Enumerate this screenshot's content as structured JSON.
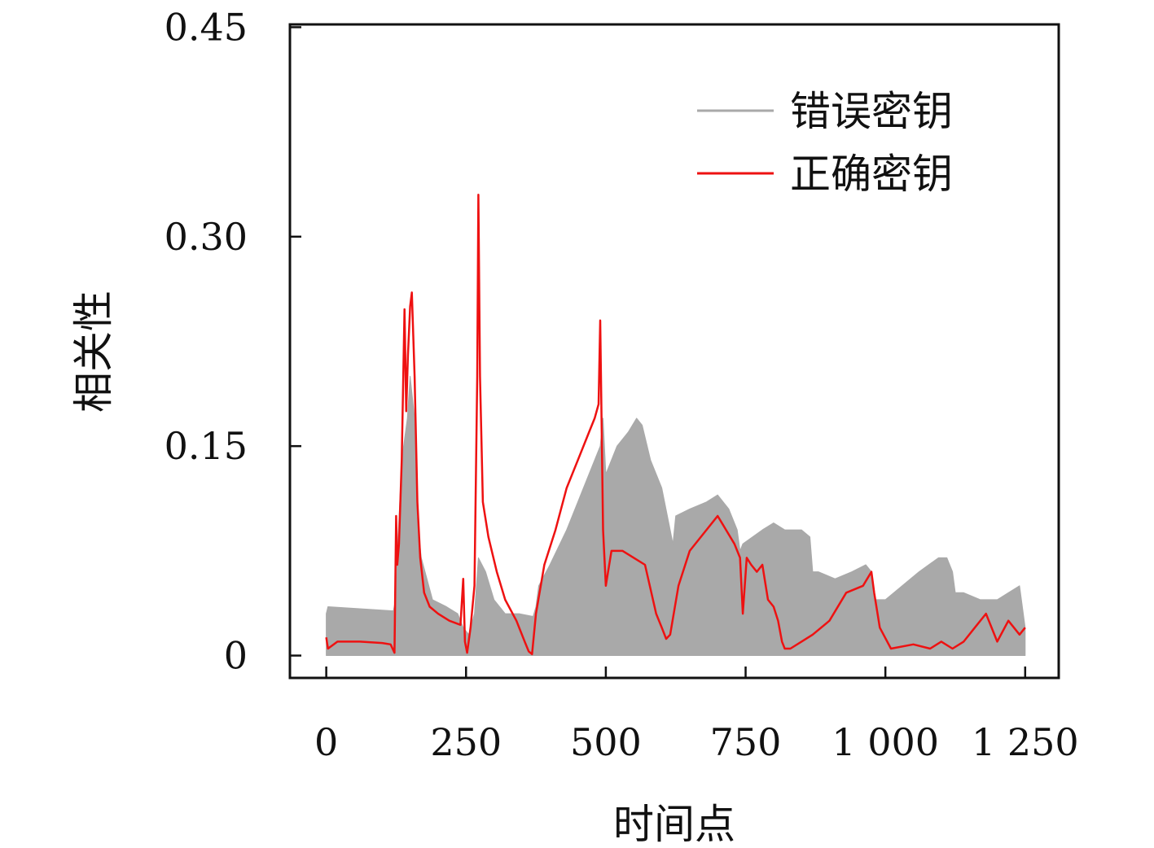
{
  "chart_data": {
    "type": "line",
    "title": "",
    "xlabel": "时间点",
    "ylabel": "相关性",
    "xlim": [
      -65,
      1310
    ],
    "ylim": [
      -0.016,
      0.452
    ],
    "x_ticks": [
      0,
      250,
      500,
      750,
      1000,
      1250
    ],
    "x_tick_labels": [
      "0",
      "250",
      "500",
      "750",
      "1 000",
      "1 250"
    ],
    "y_ticks": [
      0,
      0.15,
      0.3,
      0.45
    ],
    "y_tick_labels": [
      "0",
      "0.15",
      "0.30",
      "0.45"
    ],
    "grid": false,
    "legend_position": "top-right",
    "legend": [
      {
        "label": "错误密钥",
        "color": "#a9a9a9"
      },
      {
        "label": "正确密钥",
        "color": "#ee1111"
      }
    ],
    "series": [
      {
        "name": "错误密钥",
        "color": "#a9a9a9",
        "kind": "envelope",
        "x": [
          0,
          3,
          120,
          124,
          128,
          135,
          145,
          150,
          158,
          162,
          170,
          190,
          215,
          235,
          245,
          255,
          265,
          272,
          285,
          300,
          320,
          345,
          370,
          375,
          380,
          400,
          430,
          460,
          490,
          495,
          500,
          520,
          540,
          555,
          565,
          580,
          600,
          615,
          620,
          625,
          650,
          680,
          700,
          720,
          735,
          740,
          745,
          780,
          800,
          820,
          850,
          865,
          870,
          880,
          910,
          940,
          965,
          975,
          980,
          1000,
          1030,
          1060,
          1095,
          1110,
          1120,
          1125,
          1140,
          1170,
          1200,
          1220,
          1240,
          1250
        ],
        "upper": [
          0.03,
          0.035,
          0.032,
          0.04,
          0.08,
          0.14,
          0.17,
          0.2,
          0.17,
          0.1,
          0.07,
          0.04,
          0.035,
          0.03,
          0.02,
          0.015,
          0.03,
          0.07,
          0.06,
          0.04,
          0.03,
          0.03,
          0.028,
          0.035,
          0.05,
          0.065,
          0.09,
          0.12,
          0.15,
          0.17,
          0.13,
          0.15,
          0.16,
          0.17,
          0.165,
          0.14,
          0.12,
          0.09,
          0.08,
          0.1,
          0.105,
          0.11,
          0.115,
          0.105,
          0.09,
          0.075,
          0.08,
          0.09,
          0.095,
          0.09,
          0.09,
          0.085,
          0.06,
          0.06,
          0.055,
          0.06,
          0.065,
          0.06,
          0.04,
          0.04,
          0.05,
          0.06,
          0.07,
          0.07,
          0.06,
          0.045,
          0.045,
          0.04,
          0.04,
          0.045,
          0.05,
          0.02
        ],
        "lower": [
          0,
          0,
          0,
          0,
          0,
          0,
          0,
          0,
          0,
          0,
          0,
          0,
          0,
          0,
          0,
          0,
          0,
          0,
          0,
          0,
          0,
          0,
          0,
          0,
          0,
          0,
          0,
          0,
          0,
          0,
          0,
          0,
          0,
          0,
          0,
          0,
          0,
          0,
          0,
          0,
          0,
          0,
          0,
          0,
          0,
          0,
          0,
          0,
          0,
          0,
          0,
          0,
          0,
          0,
          0,
          0,
          0,
          0,
          0,
          0,
          0,
          0,
          0,
          0,
          0,
          0,
          0,
          0,
          0,
          0,
          0,
          0
        ]
      },
      {
        "name": "正确密钥",
        "color": "#ee1111",
        "kind": "line",
        "x": [
          0,
          3,
          20,
          60,
          100,
          115,
          122,
          125,
          127,
          130,
          135,
          140,
          143,
          146,
          150,
          153,
          158,
          163,
          168,
          175,
          185,
          200,
          220,
          240,
          245,
          248,
          252,
          258,
          265,
          270,
          272,
          275,
          280,
          290,
          305,
          320,
          340,
          355,
          362,
          368,
          375,
          390,
          410,
          430,
          450,
          470,
          480,
          487,
          490,
          492,
          495,
          500,
          510,
          530,
          550,
          570,
          590,
          600,
          608,
          615,
          630,
          650,
          680,
          700,
          715,
          730,
          740,
          745,
          752,
          760,
          770,
          780,
          790,
          800,
          808,
          815,
          820,
          830,
          850,
          870,
          900,
          930,
          960,
          975,
          980,
          990,
          1010,
          1050,
          1080,
          1100,
          1120,
          1140,
          1160,
          1180,
          1200,
          1220,
          1240,
          1250
        ],
        "y": [
          0.013,
          0.005,
          0.01,
          0.01,
          0.009,
          0.008,
          0.002,
          0.1,
          0.065,
          0.08,
          0.14,
          0.248,
          0.175,
          0.215,
          0.25,
          0.26,
          0.2,
          0.11,
          0.07,
          0.045,
          0.035,
          0.03,
          0.025,
          0.022,
          0.055,
          0.01,
          0.002,
          0.02,
          0.05,
          0.2,
          0.33,
          0.2,
          0.11,
          0.085,
          0.06,
          0.04,
          0.025,
          0.01,
          0.003,
          0.001,
          0.03,
          0.065,
          0.09,
          0.12,
          0.14,
          0.16,
          0.17,
          0.18,
          0.24,
          0.18,
          0.09,
          0.05,
          0.075,
          0.075,
          0.07,
          0.065,
          0.03,
          0.02,
          0.012,
          0.015,
          0.05,
          0.075,
          0.09,
          0.1,
          0.09,
          0.08,
          0.07,
          0.03,
          0.07,
          0.065,
          0.06,
          0.065,
          0.04,
          0.035,
          0.025,
          0.01,
          0.005,
          0.005,
          0.01,
          0.015,
          0.025,
          0.045,
          0.05,
          0.06,
          0.045,
          0.02,
          0.005,
          0.008,
          0.005,
          0.01,
          0.005,
          0.01,
          0.02,
          0.03,
          0.01,
          0.025,
          0.015,
          0.02
        ]
      }
    ]
  }
}
